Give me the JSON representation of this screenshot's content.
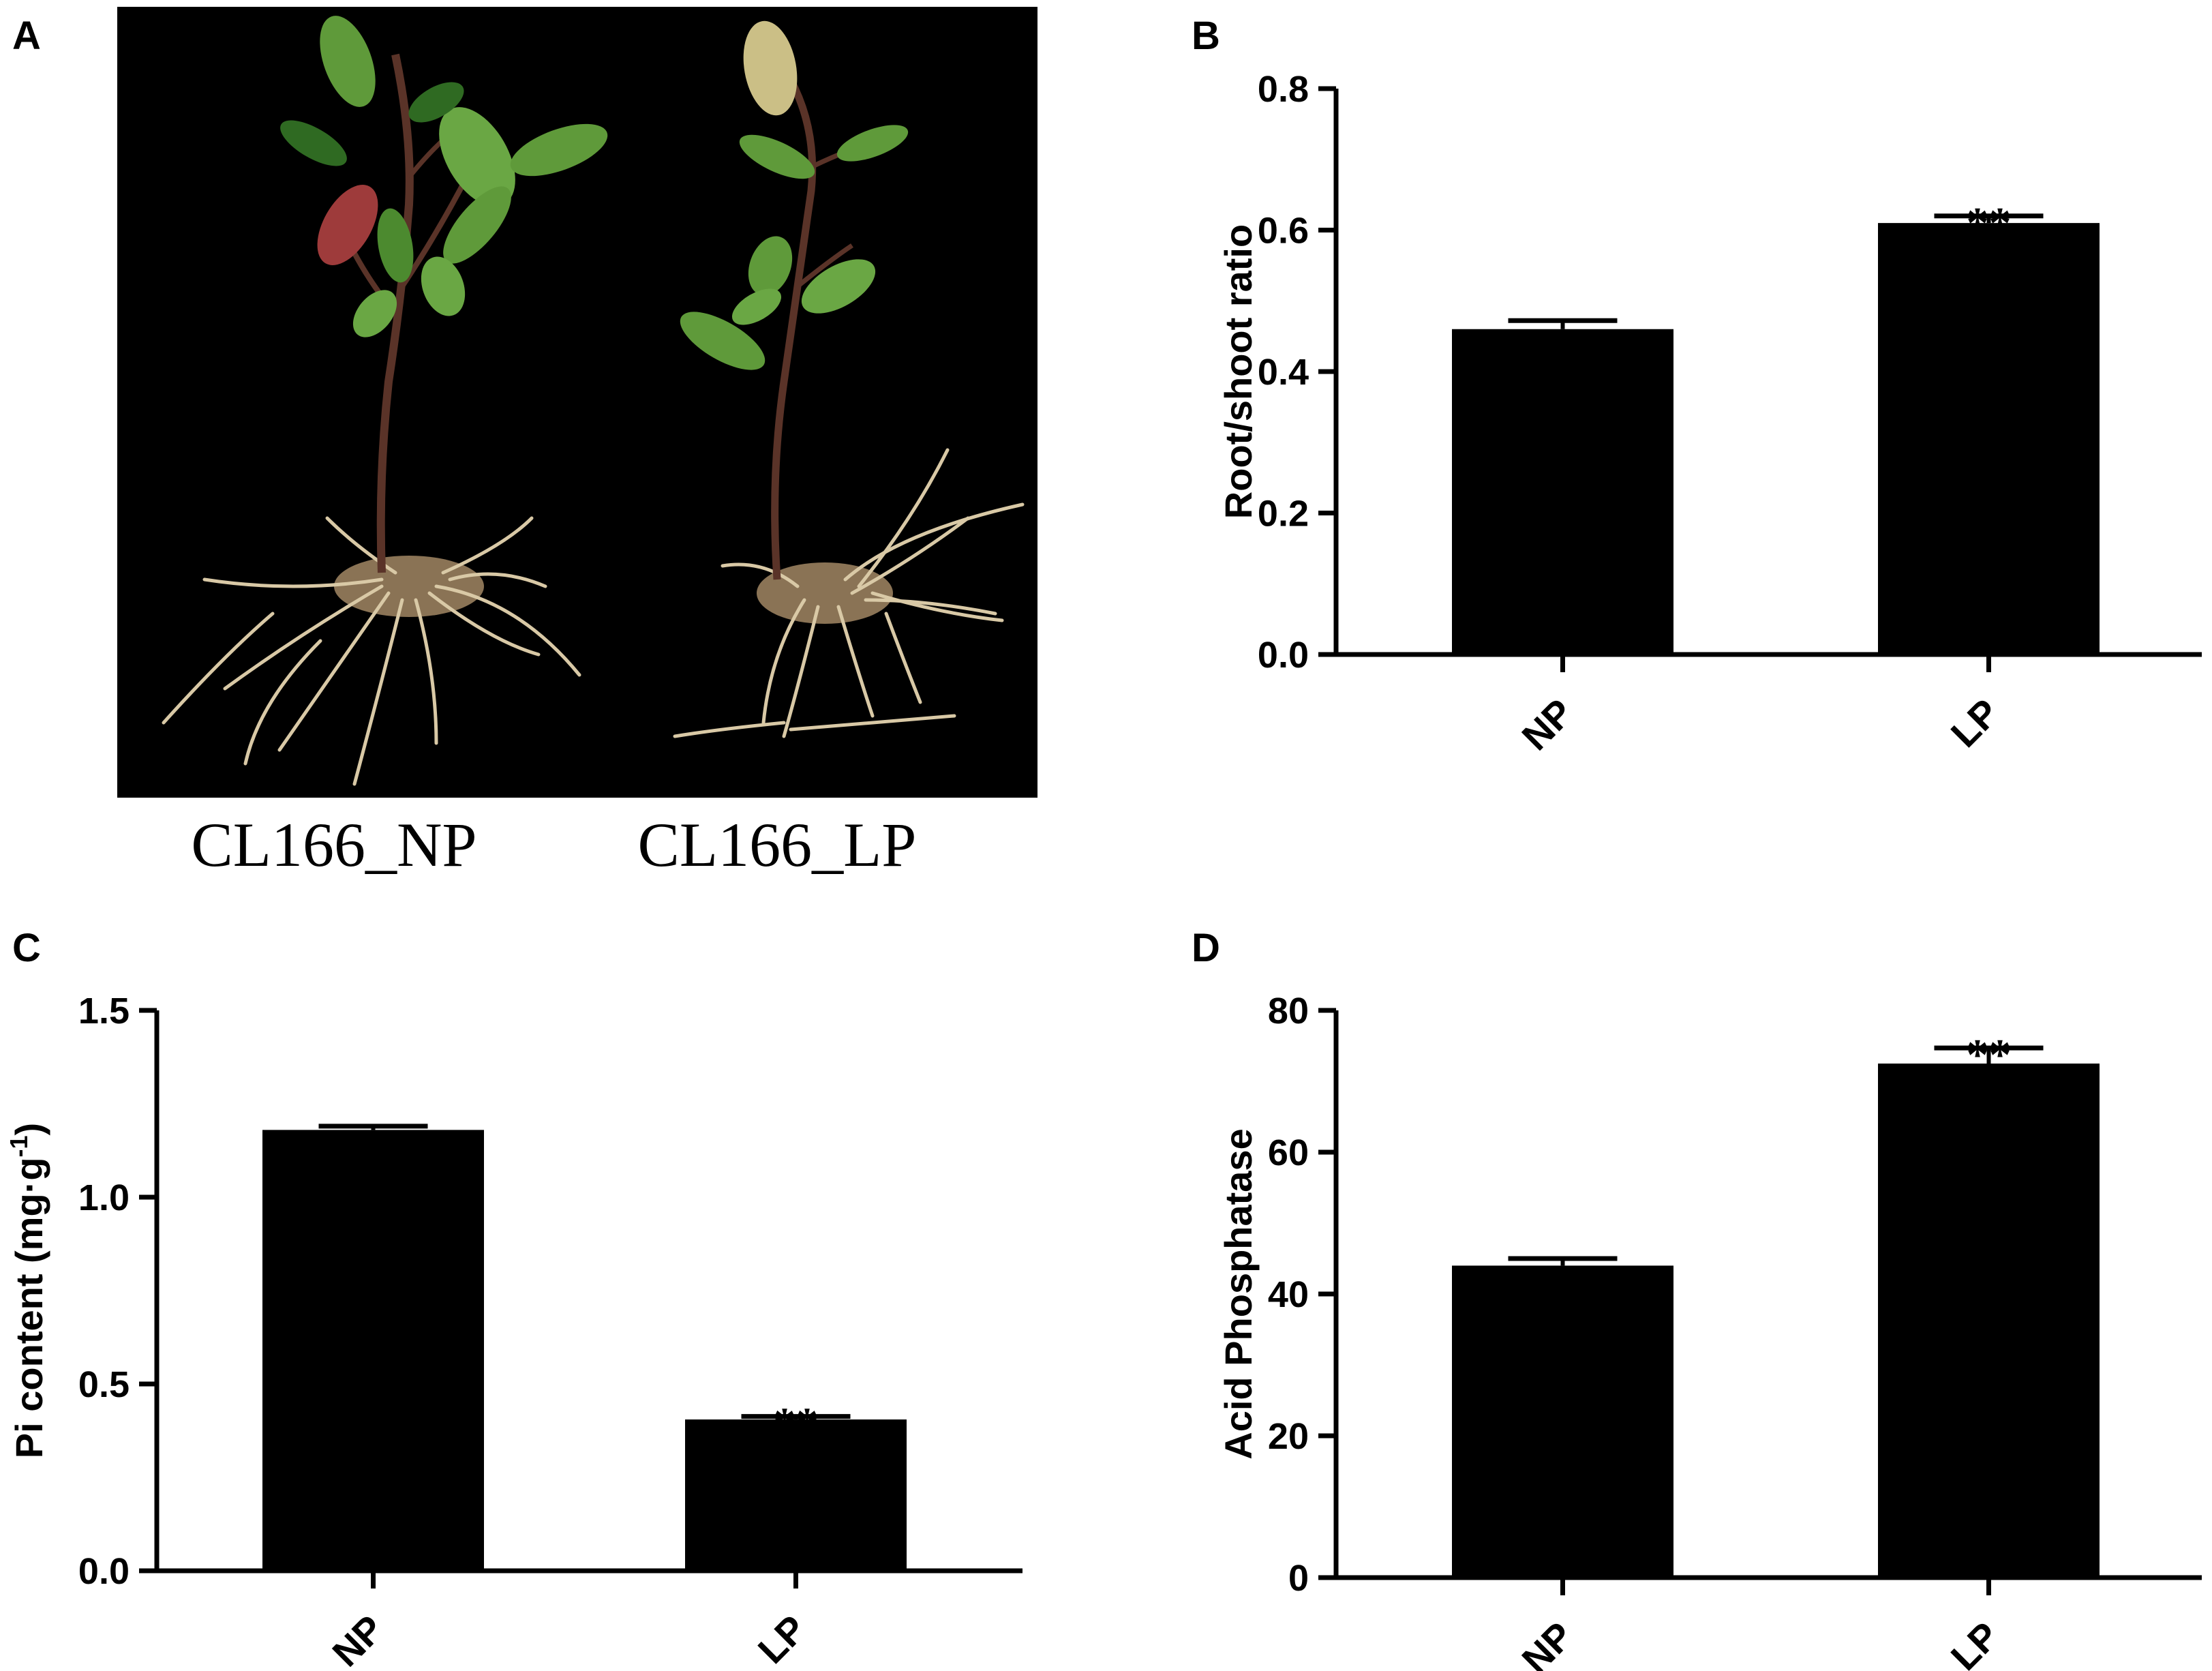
{
  "panel_labels": {
    "a": "A",
    "b": "B",
    "c": "C",
    "d": "D"
  },
  "photo": {
    "captions": [
      "CL166_NP",
      "CL166_LP"
    ],
    "colors": {
      "background": "#000000",
      "leaf": "#5f9a3a",
      "leaf_dark": "#2f6a22",
      "leaf_red": "#9e3b3b",
      "stem": "#5a3328",
      "root": "#d9c9a6"
    }
  },
  "chart_data": [
    {
      "panel": "B",
      "type": "bar",
      "categories": [
        "NP",
        "LP"
      ],
      "values": [
        0.46,
        0.61
      ],
      "errors": [
        0.012,
        0.01
      ],
      "annotations": [
        "",
        "**"
      ],
      "ylabel": "Root/shoot ratio",
      "ylabel_sup": "",
      "ylabel_tail": "",
      "ylim": [
        0,
        0.8
      ],
      "yticks": [
        0.0,
        0.2,
        0.4,
        0.6,
        0.8
      ],
      "ytick_labels": [
        "0.0",
        "0.2",
        "0.4",
        "0.6",
        "0.8"
      ],
      "bar_color": "#000000"
    },
    {
      "panel": "C",
      "type": "bar",
      "categories": [
        "NP",
        "LP"
      ],
      "values": [
        1.18,
        0.405
      ],
      "errors": [
        0.01,
        0.008
      ],
      "annotations": [
        "",
        "**"
      ],
      "ylabel": "Pi content (mg·g",
      "ylabel_sup": "-1",
      "ylabel_tail": ")",
      "ylim": [
        0,
        1.5
      ],
      "yticks": [
        0.0,
        0.5,
        1.0,
        1.5
      ],
      "ytick_labels": [
        "0.0",
        "0.5",
        "1.0",
        "1.5"
      ],
      "bar_color": "#000000"
    },
    {
      "panel": "D",
      "type": "bar",
      "categories": [
        "NP",
        "LP"
      ],
      "values": [
        44,
        72.5
      ],
      "errors": [
        1.0,
        2.2
      ],
      "annotations": [
        "",
        "**"
      ],
      "ylabel": "Acid Phosphatase",
      "ylabel_sup": "",
      "ylabel_tail": "",
      "ylim": [
        0,
        80
      ],
      "yticks": [
        0,
        20,
        40,
        60,
        80
      ],
      "ytick_labels": [
        "0",
        "20",
        "40",
        "60",
        "80"
      ],
      "bar_color": "#000000"
    }
  ]
}
